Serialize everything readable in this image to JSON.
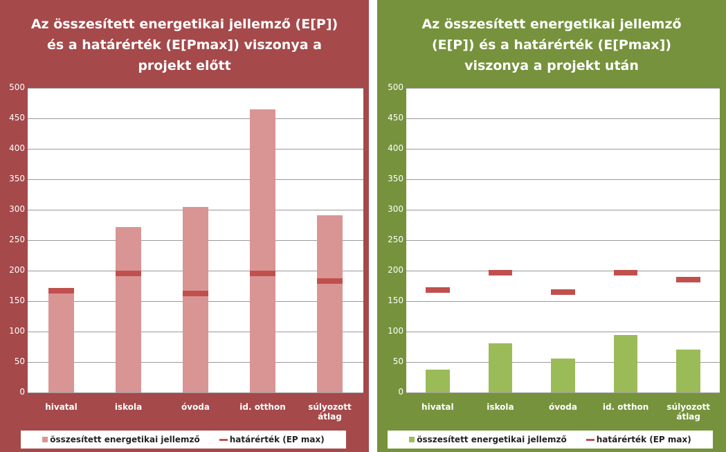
{
  "chart_data": [
    {
      "type": "bar",
      "title": "Az összesített energetikai jellemző (E[P]) és a határérték (E[Pmax]) viszonya a projekt előtt",
      "background": "#a5494a",
      "categories": [
        "hivatal",
        "iskola",
        "óvoda",
        "id. otthon",
        "súlyozott átlag"
      ],
      "series": [
        {
          "name": "összesített energetikai jellemző",
          "color": "#d99594",
          "mark": "bar",
          "values": [
            165,
            272,
            304,
            465,
            291
          ]
        },
        {
          "name": "határérték (EP max)",
          "color": "#c0504d",
          "mark": "dash",
          "values": [
            167,
            195,
            163,
            195,
            183
          ]
        }
      ],
      "ylim": [
        0,
        500
      ],
      "yticks": [
        0,
        50,
        100,
        150,
        200,
        250,
        300,
        350,
        400,
        450,
        500
      ],
      "grid": true
    },
    {
      "type": "bar",
      "title": "Az összesített energetikai jellemző (E[P]) és a határérték (E[Pmax]) viszonya a projekt után",
      "background": "#76923c",
      "categories": [
        "hivatal",
        "iskola",
        "óvoda",
        "id. otthon",
        "súlyozott átlag"
      ],
      "series": [
        {
          "name": "összesített energetikai jellemző",
          "color": "#9bbb59",
          "mark": "bar",
          "values": [
            38,
            81,
            56,
            94,
            71
          ]
        },
        {
          "name": "határérték (EP max)",
          "color": "#c0504d",
          "mark": "dash",
          "values": [
            168,
            197,
            165,
            197,
            185
          ]
        }
      ],
      "ylim": [
        0,
        500
      ],
      "yticks": [
        0,
        50,
        100,
        150,
        200,
        250,
        300,
        350,
        400,
        450,
        500
      ],
      "grid": true
    }
  ]
}
